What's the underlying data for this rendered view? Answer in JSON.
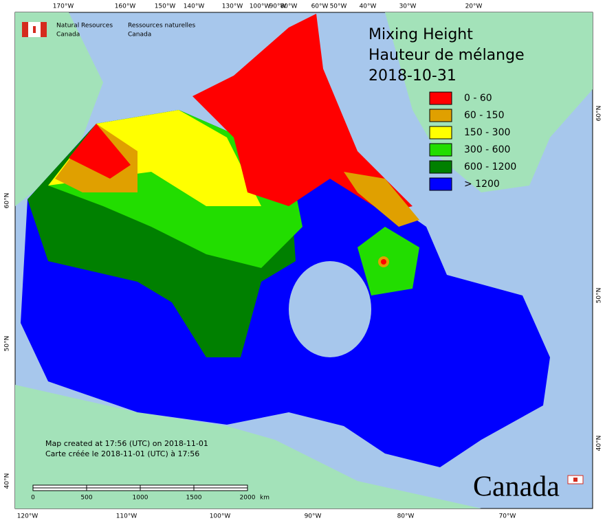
{
  "header": {
    "org_en": [
      "Natural Resources",
      "Canada"
    ],
    "org_fr": [
      "Ressources naturelles",
      "Canada"
    ]
  },
  "title": [
    "Mixing Height",
    "Hauteur de mélange",
    "2018-10-31"
  ],
  "legend": [
    {
      "label": "0 - 60",
      "color": "#ff0000"
    },
    {
      "label": "60 - 150",
      "color": "#e0a000"
    },
    {
      "label": "150 - 300",
      "color": "#ffff00"
    },
    {
      "label": "300 - 600",
      "color": "#22dd00"
    },
    {
      "label": "600 - 1200",
      "color": "#008000"
    },
    {
      "label": "> 1200",
      "color": "#0000ff"
    }
  ],
  "top_lon_labels": [
    "170°W",
    "160°W",
    "150°W",
    "140°W",
    "130°W",
    "100°W",
    "90°W",
    "80°W",
    "60°W",
    "50°W",
    "40°W",
    "30°W",
    "20°W"
  ],
  "bottom_lon_labels": [
    "120°W",
    "110°W",
    "100°W",
    "90°W",
    "80°W",
    "70°W"
  ],
  "left_lat_labels": [
    "60°N",
    "50°N",
    "40°N"
  ],
  "right_lat_labels": [
    "60°N",
    "50°N",
    "40°N"
  ],
  "credit": [
    "Map created at 17:56 (UTC) on 2018-11-01",
    "Carte créée le 2018-11-01 (UTC) à 17:56"
  ],
  "scale": {
    "labels": [
      "0",
      "500",
      "1000",
      "1500",
      "2000"
    ],
    "unit": "km"
  },
  "wordmark": "Canada"
}
